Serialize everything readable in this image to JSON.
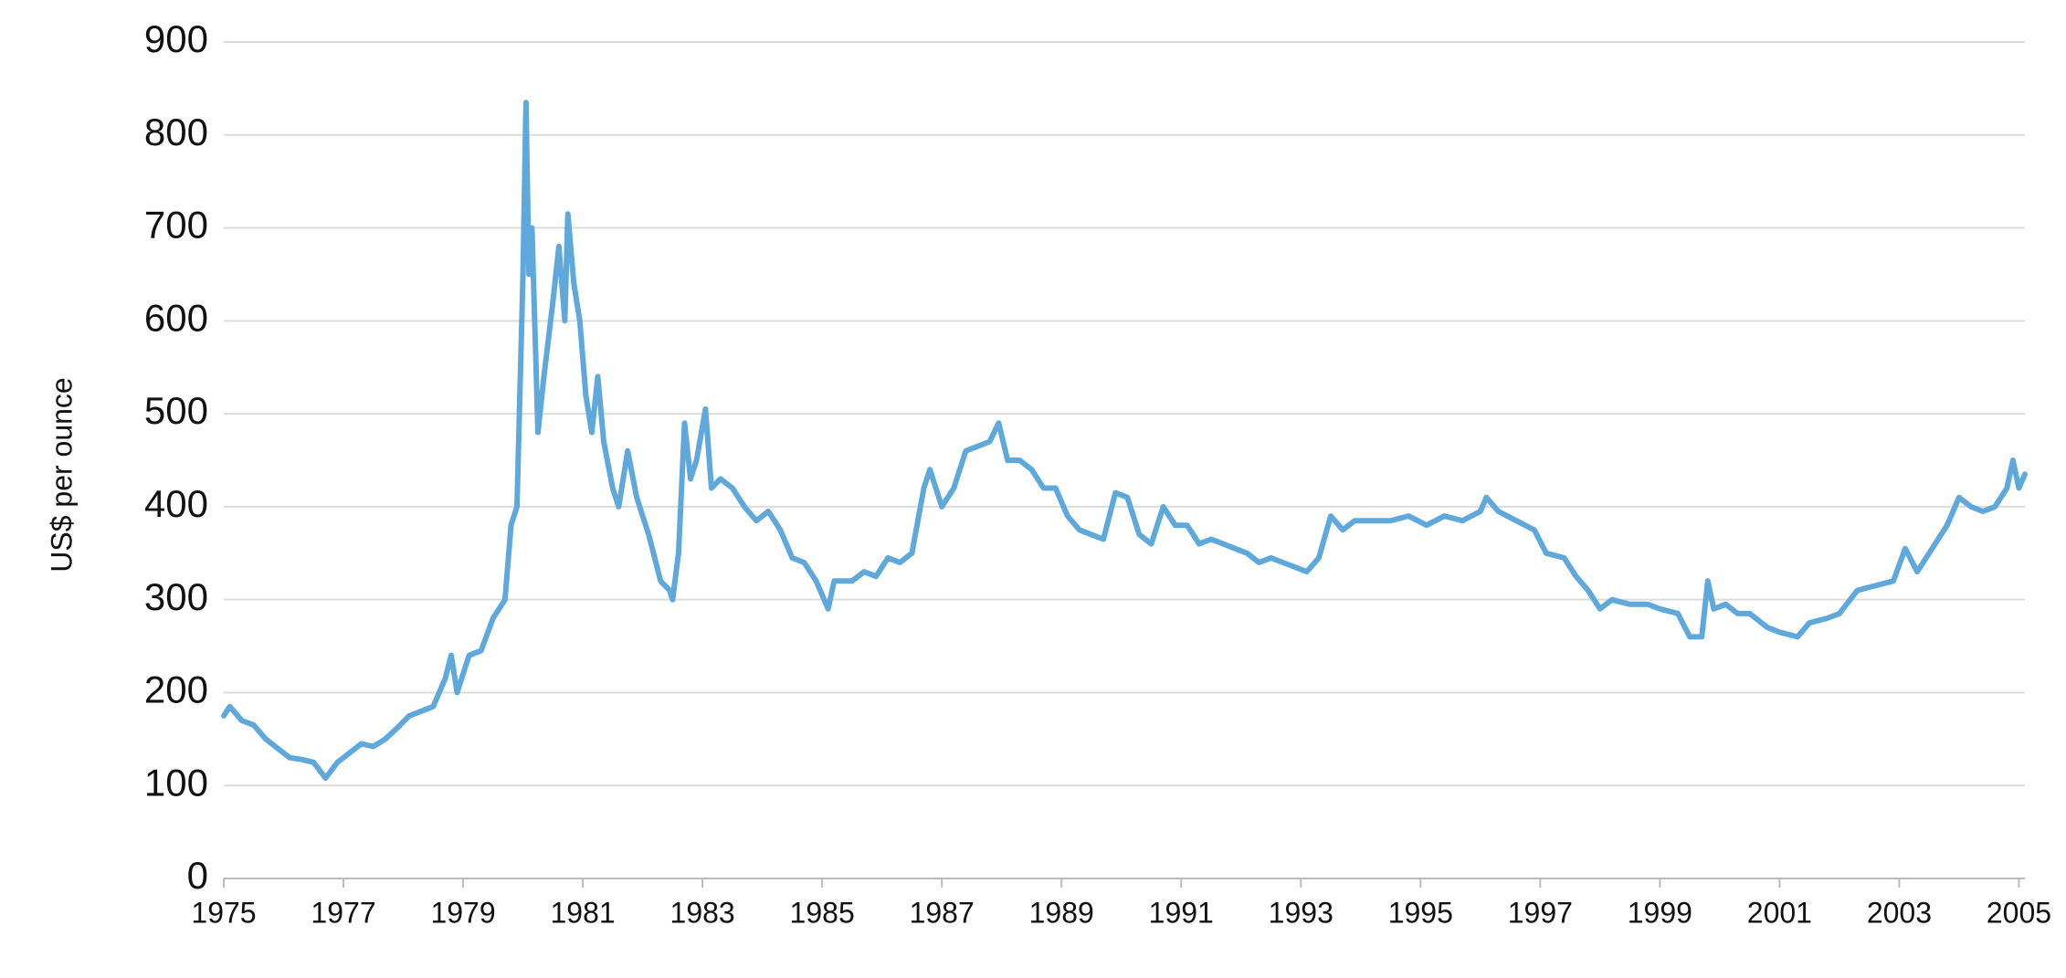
{
  "chart_data": {
    "type": "line",
    "ylabel": "US$ per ounce",
    "color": "#5fa8dc",
    "grid": true,
    "xlim": [
      1975,
      2005.1
    ],
    "xticks": [
      1975,
      1977,
      1979,
      1981,
      1983,
      1985,
      1987,
      1989,
      1991,
      1993,
      1995,
      1997,
      1999,
      2001,
      2003,
      2005
    ],
    "ylim": [
      0,
      900
    ],
    "yticks": [
      0,
      100,
      200,
      300,
      400,
      500,
      600,
      700,
      800,
      900
    ],
    "x": [
      1975.0,
      1975.1,
      1975.3,
      1975.5,
      1975.7,
      1975.9,
      1976.1,
      1976.3,
      1976.5,
      1976.7,
      1976.9,
      1977.1,
      1977.3,
      1977.5,
      1977.7,
      1977.9,
      1978.1,
      1978.3,
      1978.5,
      1978.7,
      1978.8,
      1978.9,
      1979.1,
      1979.3,
      1979.5,
      1979.7,
      1979.8,
      1979.9,
      1980.0,
      1980.05,
      1980.1,
      1980.15,
      1980.25,
      1980.35,
      1980.5,
      1980.6,
      1980.7,
      1980.75,
      1980.85,
      1980.95,
      1981.05,
      1981.15,
      1981.25,
      1981.35,
      1981.5,
      1981.6,
      1981.75,
      1981.9,
      1982.1,
      1982.3,
      1982.45,
      1982.5,
      1982.6,
      1982.7,
      1982.8,
      1982.9,
      1983.05,
      1983.15,
      1983.3,
      1983.5,
      1983.7,
      1983.9,
      1984.1,
      1984.3,
      1984.5,
      1984.7,
      1984.9,
      1985.1,
      1985.2,
      1985.5,
      1985.7,
      1985.9,
      1986.1,
      1986.3,
      1986.5,
      1986.7,
      1986.8,
      1987.0,
      1987.2,
      1987.4,
      1987.6,
      1987.8,
      1987.95,
      1988.1,
      1988.3,
      1988.5,
      1988.7,
      1988.9,
      1989.1,
      1989.3,
      1989.5,
      1989.7,
      1989.9,
      1990.1,
      1990.3,
      1990.5,
      1990.7,
      1990.9,
      1991.1,
      1991.3,
      1991.5,
      1991.7,
      1991.9,
      1992.1,
      1992.3,
      1992.5,
      1992.7,
      1992.9,
      1993.1,
      1993.3,
      1993.5,
      1993.7,
      1993.9,
      1994.2,
      1994.5,
      1994.8,
      1995.1,
      1995.4,
      1995.7,
      1996.0,
      1996.1,
      1996.3,
      1996.6,
      1996.9,
      1997.1,
      1997.4,
      1997.6,
      1997.8,
      1998.0,
      1998.2,
      1998.5,
      1998.8,
      1999.0,
      1999.3,
      1999.5,
      1999.7,
      1999.8,
      1999.9,
      2000.1,
      2000.3,
      2000.5,
      2000.8,
      2001.0,
      2001.3,
      2001.5,
      2001.8,
      2002.0,
      2002.3,
      2002.6,
      2002.9,
      2003.1,
      2003.3,
      2003.5,
      2003.8,
      2004.0,
      2004.2,
      2004.4,
      2004.6,
      2004.8,
      2004.9,
      2005.0,
      2005.1
    ],
    "values": [
      175,
      185,
      170,
      165,
      150,
      140,
      130,
      128,
      125,
      108,
      125,
      135,
      145,
      142,
      150,
      162,
      175,
      180,
      185,
      215,
      240,
      200,
      240,
      245,
      280,
      300,
      380,
      400,
      650,
      835,
      650,
      700,
      480,
      540,
      620,
      680,
      600,
      715,
      640,
      600,
      520,
      480,
      540,
      470,
      420,
      400,
      460,
      410,
      370,
      320,
      310,
      300,
      350,
      490,
      430,
      450,
      505,
      420,
      430,
      420,
      400,
      385,
      395,
      375,
      345,
      340,
      320,
      290,
      320,
      320,
      330,
      325,
      345,
      340,
      350,
      420,
      440,
      400,
      420,
      460,
      465,
      470,
      490,
      450,
      450,
      440,
      420,
      420,
      390,
      375,
      370,
      365,
      415,
      410,
      370,
      360,
      400,
      380,
      380,
      360,
      365,
      360,
      355,
      350,
      340,
      345,
      340,
      335,
      330,
      345,
      390,
      375,
      385,
      385,
      385,
      390,
      380,
      390,
      385,
      395,
      410,
      395,
      385,
      375,
      350,
      345,
      325,
      310,
      290,
      300,
      295,
      295,
      290,
      285,
      260,
      260,
      320,
      290,
      295,
      285,
      285,
      270,
      265,
      260,
      275,
      280,
      285,
      310,
      315,
      320,
      355,
      330,
      350,
      380,
      410,
      400,
      395,
      400,
      420,
      450,
      420,
      435
    ]
  }
}
